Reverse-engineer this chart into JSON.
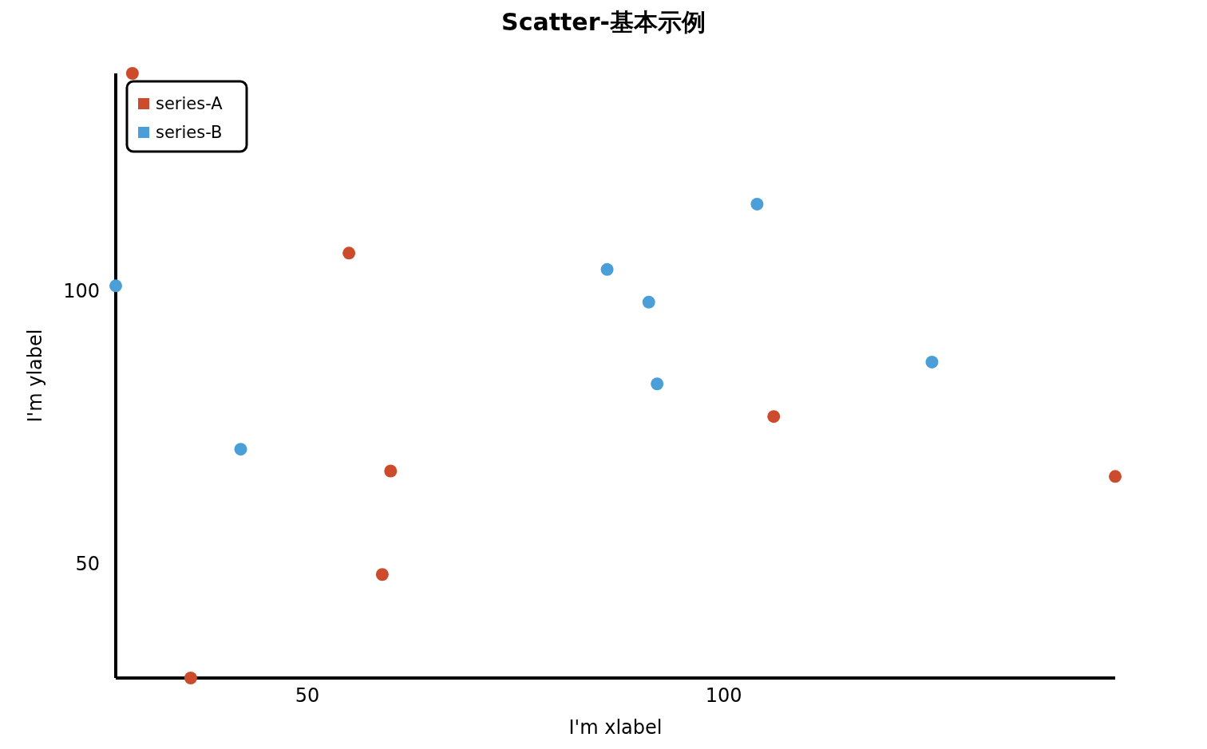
{
  "chart_data": {
    "type": "scatter",
    "title": "Scatter-基本示例",
    "xlabel": "I'm xlabel",
    "ylabel": "I'm ylabel",
    "xlim": [
      27,
      147
    ],
    "ylim": [
      29,
      140
    ],
    "xticks": [
      50,
      100
    ],
    "yticks": [
      50,
      100
    ],
    "legend": "top left",
    "marker": "circle",
    "series": [
      {
        "name": "series-A",
        "color": "#cc4b2c",
        "x": [
          29,
          55,
          60,
          59,
          36,
          106,
          147
        ],
        "values": [
          140,
          107,
          67,
          48,
          29,
          77,
          66
        ]
      },
      {
        "name": "series-B",
        "color": "#4a9fd8",
        "x": [
          27,
          42,
          86,
          91,
          92,
          104,
          125
        ],
        "values": [
          101,
          71,
          104,
          98,
          83,
          116,
          87
        ]
      }
    ]
  }
}
